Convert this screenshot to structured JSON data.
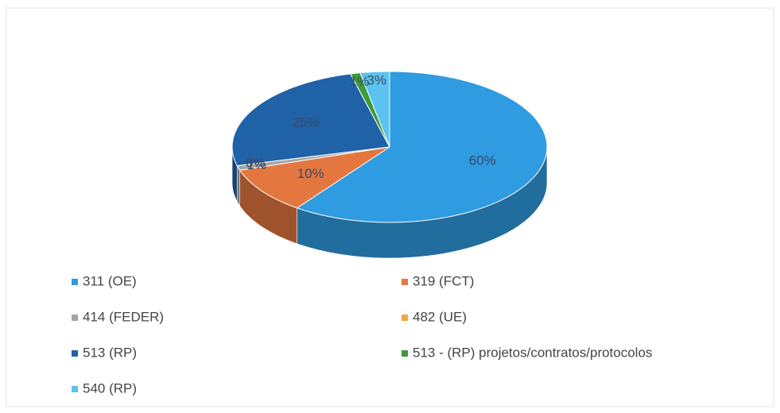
{
  "chart_data": {
    "type": "pie",
    "categories": [
      "311 (OE)",
      "319 (FCT)",
      "414 (FEDER)",
      "482 (UE)",
      "513 (RP)",
      "513 - (RP) projetos/contratos/protocolos",
      "540 (RP)"
    ],
    "values": [
      60,
      10,
      1,
      0,
      25,
      1,
      3
    ],
    "value_labels": [
      "60%",
      "10%",
      "1%",
      "0%",
      "25%",
      "1%",
      "3%"
    ],
    "colors": [
      "#2f9be0",
      "#e3773f",
      "#a5a5a5",
      "#f2a54a",
      "#1f62a8",
      "#3d9a3a",
      "#5cc2ef"
    ],
    "legend": "bottom"
  }
}
